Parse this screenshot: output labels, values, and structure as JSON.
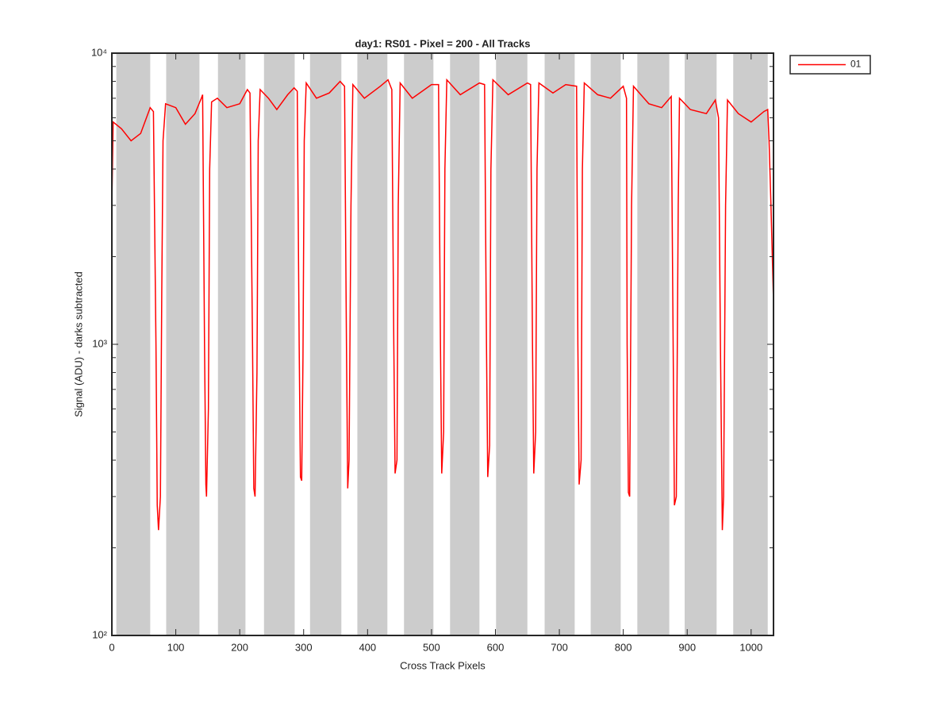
{
  "chart_data": {
    "type": "line",
    "title": "day1: RS01 - Pixel = 200 - All Tracks",
    "xlabel": "Cross Track Pixels",
    "ylabel": "Signal (ADU) - darks subtracted",
    "log_y": true,
    "xlim": [
      0,
      1035
    ],
    "ylim": [
      100,
      10000
    ],
    "xticks": [
      0,
      100,
      200,
      300,
      400,
      500,
      600,
      700,
      800,
      900,
      1000
    ],
    "yticks": [
      {
        "value": 100,
        "label": "10²"
      },
      {
        "value": 1000,
        "label": "10³"
      },
      {
        "value": 10000,
        "label": "10⁴"
      }
    ],
    "yminorticks": [
      200,
      300,
      400,
      500,
      600,
      700,
      800,
      900,
      2000,
      3000,
      4000,
      5000,
      6000,
      7000,
      8000,
      9000
    ],
    "band_color": "#cccccc",
    "bands": [
      [
        7,
        60
      ],
      [
        85,
        137
      ],
      [
        166,
        209
      ],
      [
        238,
        286
      ],
      [
        310,
        359
      ],
      [
        384,
        431
      ],
      [
        457,
        503
      ],
      [
        529,
        575
      ],
      [
        601,
        650
      ],
      [
        677,
        724
      ],
      [
        749,
        796
      ],
      [
        822,
        872
      ],
      [
        896,
        946
      ],
      [
        972,
        1026
      ]
    ],
    "legend": "outside-top-right",
    "x": [
      0,
      2,
      15,
      30,
      45,
      60,
      65,
      69,
      71,
      73,
      76,
      78,
      80,
      84,
      100,
      115,
      130,
      140,
      142,
      145,
      147,
      148,
      151,
      153,
      156,
      165,
      180,
      200,
      212,
      216,
      220,
      222,
      224,
      227,
      229,
      232,
      245,
      258,
      275,
      285,
      290,
      293,
      295,
      297,
      299,
      301,
      304,
      320,
      340,
      357,
      364,
      367,
      369,
      371,
      374,
      377,
      395,
      420,
      432,
      438,
      441,
      443,
      446,
      448,
      451,
      470,
      500,
      511,
      514,
      516,
      519,
      521,
      524,
      545,
      575,
      583,
      586,
      588,
      591,
      593,
      596,
      620,
      650,
      655,
      658,
      660,
      663,
      665,
      668,
      690,
      710,
      727,
      729,
      731,
      734,
      736,
      739,
      760,
      780,
      800,
      805,
      806,
      808,
      810,
      813,
      816,
      840,
      860,
      875,
      878,
      880,
      883,
      886,
      888,
      905,
      930,
      944,
      949,
      952,
      955,
      957,
      960,
      963,
      980,
      1000,
      1020,
      1026,
      1028,
      1031,
      1035
    ],
    "series": [
      {
        "name": "01",
        "color": "#ff0000",
        "values": [
          3000,
          5800,
          5500,
          5000,
          5300,
          6500,
          6300,
          1000,
          280,
          230,
          300,
          1500,
          5000,
          6700,
          6500,
          5700,
          6200,
          7000,
          7200,
          1000,
          330,
          300,
          600,
          4000,
          6800,
          7000,
          6500,
          6700,
          7500,
          7300,
          1000,
          320,
          300,
          800,
          5000,
          7500,
          7000,
          6400,
          7200,
          7600,
          7400,
          1000,
          350,
          340,
          900,
          5000,
          7900,
          7000,
          7300,
          8000,
          7700,
          1000,
          320,
          400,
          3000,
          7800,
          7000,
          7700,
          8100,
          7500,
          1000,
          360,
          400,
          3000,
          7900,
          7000,
          7800,
          7800,
          1000,
          360,
          500,
          4000,
          8100,
          7200,
          7900,
          7800,
          1000,
          350,
          450,
          4000,
          8100,
          7200,
          7900,
          7800,
          1000,
          360,
          500,
          4000,
          7900,
          7300,
          7800,
          7700,
          1000,
          330,
          400,
          4000,
          7900,
          7200,
          7000,
          7700,
          7000,
          1000,
          310,
          300,
          3000,
          7700,
          6700,
          6500,
          7100,
          1000,
          280,
          300,
          3000,
          7000,
          6400,
          6200,
          6900,
          6000,
          1000,
          230,
          300,
          3000,
          6900,
          6200,
          5800,
          6300,
          6400,
          5000,
          3000,
          1400
        ]
      }
    ]
  }
}
